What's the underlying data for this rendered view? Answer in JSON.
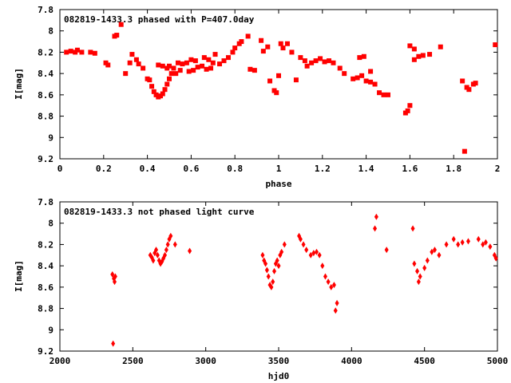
{
  "chart_data": [
    {
      "type": "scatter",
      "title": "082819-1433.3 phased with P=407.0day",
      "xlabel": "phase",
      "ylabel": "I[mag]",
      "xlim": [
        0,
        2
      ],
      "ylim": [
        9.2,
        7.8
      ],
      "y_inverted": true,
      "x_ticks": [
        "0",
        "0.2",
        "0.4",
        "0.6",
        "0.8",
        "1",
        "1.2",
        "1.4",
        "1.6",
        "1.8",
        "2"
      ],
      "x_tick_values": [
        0,
        0.2,
        0.4,
        0.6,
        0.8,
        1.0,
        1.2,
        1.4,
        1.6,
        1.8,
        2.0
      ],
      "y_ticks": [
        "7.8",
        "8",
        "8.2",
        "8.4",
        "8.6",
        "8.8",
        "9",
        "9.2"
      ],
      "y_tick_values": [
        7.8,
        8.0,
        8.2,
        8.4,
        8.6,
        8.8,
        9.0,
        9.2
      ],
      "color": "#ff0000",
      "series": [
        {
          "points": [
            [
              0.03,
              8.2
            ],
            [
              0.05,
              8.19
            ],
            [
              0.07,
              8.2
            ],
            [
              0.08,
              8.18
            ],
            [
              0.1,
              8.2
            ],
            [
              0.14,
              8.2
            ],
            [
              0.16,
              8.21
            ],
            [
              0.21,
              8.3
            ],
            [
              0.22,
              8.32
            ],
            [
              0.25,
              8.05
            ],
            [
              0.26,
              8.04
            ],
            [
              0.28,
              7.94
            ],
            [
              0.3,
              8.4
            ],
            [
              0.32,
              8.3
            ],
            [
              0.33,
              8.22
            ],
            [
              0.35,
              8.27
            ],
            [
              0.36,
              8.31
            ],
            [
              0.38,
              8.35
            ],
            [
              0.4,
              8.45
            ],
            [
              0.41,
              8.46
            ],
            [
              0.42,
              8.52
            ],
            [
              0.43,
              8.57
            ],
            [
              0.44,
              8.6
            ],
            [
              0.45,
              8.62
            ],
            [
              0.46,
              8.61
            ],
            [
              0.47,
              8.59
            ],
            [
              0.48,
              8.55
            ],
            [
              0.49,
              8.5
            ],
            [
              0.5,
              8.45
            ],
            [
              0.51,
              8.4
            ],
            [
              0.45,
              8.32
            ],
            [
              0.47,
              8.33
            ],
            [
              0.49,
              8.35
            ],
            [
              0.5,
              8.33
            ],
            [
              0.52,
              8.35
            ],
            [
              0.54,
              8.3
            ],
            [
              0.53,
              8.4
            ],
            [
              0.55,
              8.37
            ],
            [
              0.56,
              8.31
            ],
            [
              0.58,
              8.3
            ],
            [
              0.6,
              8.27
            ],
            [
              0.62,
              8.28
            ],
            [
              0.59,
              8.38
            ],
            [
              0.61,
              8.37
            ],
            [
              0.63,
              8.34
            ],
            [
              0.65,
              8.33
            ],
            [
              0.67,
              8.36
            ],
            [
              0.69,
              8.35
            ],
            [
              0.66,
              8.25
            ],
            [
              0.68,
              8.27
            ],
            [
              0.7,
              8.3
            ],
            [
              0.71,
              8.22
            ],
            [
              0.73,
              8.31
            ],
            [
              0.75,
              8.28
            ],
            [
              0.77,
              8.25
            ],
            [
              0.79,
              8.2
            ],
            [
              0.8,
              8.16
            ],
            [
              0.82,
              8.12
            ],
            [
              0.83,
              8.1
            ],
            [
              0.86,
              8.05
            ],
            [
              0.87,
              8.36
            ],
            [
              0.89,
              8.37
            ],
            [
              0.92,
              8.09
            ],
            [
              0.93,
              8.19
            ],
            [
              0.95,
              8.15
            ],
            [
              0.96,
              8.47
            ],
            [
              0.98,
              8.56
            ],
            [
              0.99,
              8.58
            ],
            [
              1.0,
              8.42
            ],
            [
              1.01,
              8.12
            ],
            [
              1.02,
              8.16
            ],
            [
              1.04,
              8.12
            ],
            [
              1.06,
              8.2
            ],
            [
              1.08,
              8.46
            ],
            [
              1.1,
              8.25
            ],
            [
              1.12,
              8.28
            ],
            [
              1.13,
              8.33
            ],
            [
              1.15,
              8.3
            ],
            [
              1.17,
              8.28
            ],
            [
              1.19,
              8.26
            ],
            [
              1.21,
              8.29
            ],
            [
              1.23,
              8.28
            ],
            [
              1.25,
              8.3
            ],
            [
              1.28,
              8.35
            ],
            [
              1.3,
              8.4
            ],
            [
              1.34,
              8.45
            ],
            [
              1.36,
              8.44
            ],
            [
              1.38,
              8.42
            ],
            [
              1.4,
              8.47
            ],
            [
              1.42,
              8.48
            ],
            [
              1.44,
              8.5
            ],
            [
              1.37,
              8.25
            ],
            [
              1.39,
              8.24
            ],
            [
              1.42,
              8.38
            ],
            [
              1.46,
              8.58
            ],
            [
              1.48,
              8.6
            ],
            [
              1.5,
              8.6
            ],
            [
              1.58,
              8.77
            ],
            [
              1.59,
              8.75
            ],
            [
              1.6,
              8.7
            ],
            [
              1.6,
              8.14
            ],
            [
              1.62,
              8.17
            ],
            [
              1.62,
              8.27
            ],
            [
              1.64,
              8.24
            ],
            [
              1.66,
              8.23
            ],
            [
              1.69,
              8.22
            ],
            [
              1.74,
              8.15
            ],
            [
              1.84,
              8.47
            ],
            [
              1.86,
              8.53
            ],
            [
              1.87,
              8.55
            ],
            [
              1.89,
              8.5
            ],
            [
              1.9,
              8.49
            ],
            [
              1.85,
              9.13
            ],
            [
              1.99,
              8.13
            ]
          ]
        }
      ]
    },
    {
      "type": "scatter",
      "title": "082819-1433.3 not phased light curve",
      "xlabel": "hjd0",
      "ylabel": "I[mag]",
      "xlim": [
        2000,
        5000
      ],
      "ylim": [
        9.2,
        7.8
      ],
      "y_inverted": true,
      "x_ticks": [
        "2000",
        "2500",
        "3000",
        "3500",
        "4000",
        "4500",
        "5000"
      ],
      "x_tick_values": [
        2000,
        2500,
        3000,
        3500,
        4000,
        4500,
        5000
      ],
      "y_ticks": [
        "7.8",
        "8",
        "8.2",
        "8.4",
        "8.6",
        "8.8",
        "9",
        "9.2"
      ],
      "y_tick_values": [
        7.8,
        8.0,
        8.2,
        8.4,
        8.6,
        8.8,
        9.0,
        9.2
      ],
      "color": "#ff0000",
      "series": [
        {
          "points": [
            [
              2360,
              8.48
            ],
            [
              2370,
              8.52
            ],
            [
              2375,
              8.55
            ],
            [
              2380,
              8.5
            ],
            [
              2365,
              9.13
            ],
            [
              2620,
              8.3
            ],
            [
              2630,
              8.32
            ],
            [
              2640,
              8.35
            ],
            [
              2650,
              8.28
            ],
            [
              2660,
              8.25
            ],
            [
              2670,
              8.3
            ],
            [
              2680,
              8.35
            ],
            [
              2690,
              8.38
            ],
            [
              2700,
              8.36
            ],
            [
              2710,
              8.33
            ],
            [
              2720,
              8.3
            ],
            [
              2730,
              8.25
            ],
            [
              2740,
              8.2
            ],
            [
              2750,
              8.15
            ],
            [
              2760,
              8.12
            ],
            [
              2790,
              8.2
            ],
            [
              2890,
              8.26
            ],
            [
              3390,
              8.3
            ],
            [
              3400,
              8.35
            ],
            [
              3410,
              8.38
            ],
            [
              3420,
              8.44
            ],
            [
              3430,
              8.5
            ],
            [
              3440,
              8.58
            ],
            [
              3450,
              8.6
            ],
            [
              3460,
              8.55
            ],
            [
              3470,
              8.45
            ],
            [
              3480,
              8.38
            ],
            [
              3490,
              8.35
            ],
            [
              3500,
              8.4
            ],
            [
              3510,
              8.3
            ],
            [
              3520,
              8.27
            ],
            [
              3540,
              8.2
            ],
            [
              3640,
              8.12
            ],
            [
              3650,
              8.15
            ],
            [
              3670,
              8.2
            ],
            [
              3690,
              8.25
            ],
            [
              3720,
              8.3
            ],
            [
              3740,
              8.28
            ],
            [
              3760,
              8.27
            ],
            [
              3780,
              8.3
            ],
            [
              3800,
              8.4
            ],
            [
              3820,
              8.5
            ],
            [
              3840,
              8.55
            ],
            [
              3860,
              8.6
            ],
            [
              3880,
              8.58
            ],
            [
              3900,
              8.75
            ],
            [
              3890,
              8.82
            ],
            [
              4160,
              8.05
            ],
            [
              4170,
              7.94
            ],
            [
              4240,
              8.25
            ],
            [
              4420,
              8.05
            ],
            [
              4430,
              8.38
            ],
            [
              4450,
              8.45
            ],
            [
              4460,
              8.55
            ],
            [
              4470,
              8.5
            ],
            [
              4500,
              8.42
            ],
            [
              4520,
              8.35
            ],
            [
              4550,
              8.27
            ],
            [
              4570,
              8.25
            ],
            [
              4600,
              8.3
            ],
            [
              4650,
              8.2
            ],
            [
              4700,
              8.15
            ],
            [
              4730,
              8.2
            ],
            [
              4760,
              8.18
            ],
            [
              4800,
              8.17
            ],
            [
              4870,
              8.15
            ],
            [
              4900,
              8.2
            ],
            [
              4920,
              8.18
            ],
            [
              4950,
              8.22
            ],
            [
              4980,
              8.3
            ],
            [
              4990,
              8.33
            ]
          ]
        }
      ]
    }
  ]
}
